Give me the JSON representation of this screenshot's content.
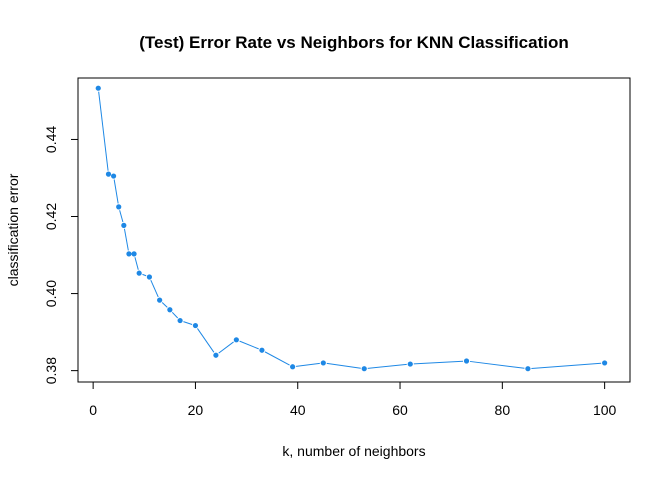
{
  "chart_data": {
    "type": "line",
    "title": "(Test) Error Rate vs Neighbors for KNN Classification",
    "xlabel": "k, number of neighbors",
    "ylabel": "classification error",
    "xlim": [
      -2.96,
      104.96
    ],
    "ylim": [
      0.37705,
      0.45595
    ],
    "x_ticks": [
      0,
      20,
      40,
      60,
      80,
      100
    ],
    "y_ticks": [
      0.38,
      0.4,
      0.42,
      0.44
    ],
    "x_tick_labels": [
      "0",
      "20",
      "40",
      "60",
      "80",
      "100"
    ],
    "y_tick_labels": [
      "0.38",
      "0.40",
      "0.42",
      "0.44"
    ],
    "grid": false,
    "legend": false,
    "series": [
      {
        "color": "#1e88e5",
        "x": [
          1,
          3,
          4,
          5,
          6,
          7,
          8,
          9,
          11,
          13,
          15,
          17,
          20,
          24,
          28,
          33,
          39,
          45,
          53,
          62,
          73,
          85,
          100
        ],
        "y": [
          0.4533,
          0.431,
          0.4305,
          0.4225,
          0.4177,
          0.4103,
          0.4103,
          0.4053,
          0.4043,
          0.3983,
          0.3958,
          0.393,
          0.3917,
          0.384,
          0.388,
          0.3853,
          0.381,
          0.382,
          0.3805,
          0.3817,
          0.3825,
          0.3805,
          0.382
        ]
      }
    ]
  }
}
